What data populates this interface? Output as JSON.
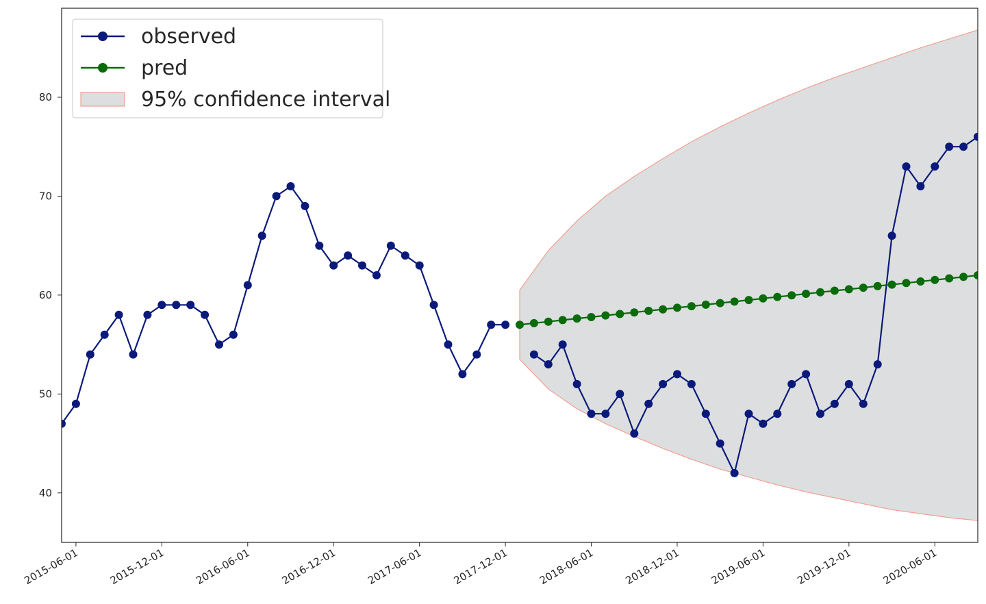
{
  "chart_data": {
    "type": "line",
    "grid": false,
    "legend_position": "top-left",
    "x_range": [
      "2015-05-01",
      "2020-09-01"
    ],
    "ylim": [
      35,
      89
    ],
    "yticks": [
      40,
      50,
      60,
      70,
      80
    ],
    "xticks": [
      "2015-06-01",
      "2015-12-01",
      "2016-06-01",
      "2016-12-01",
      "2017-06-01",
      "2017-12-01",
      "2018-06-01",
      "2018-12-01",
      "2019-06-01",
      "2019-12-01",
      "2020-06-01"
    ],
    "legend": [
      {
        "label": "observed",
        "color": "#0b1a7a",
        "kind": "line-marker"
      },
      {
        "label": "pred",
        "color": "#0a6b0a",
        "kind": "line-marker"
      },
      {
        "label": "95% confidence interval",
        "color": "#dcdee0",
        "edge": "#f0a090",
        "kind": "patch"
      }
    ],
    "series": [
      {
        "name": "observed",
        "color": "#0b1a7a",
        "segments": [
          {
            "x": [
              "2015-05-01",
              "2015-06-01",
              "2015-07-01",
              "2015-08-01",
              "2015-09-01",
              "2015-10-01",
              "2015-11-01",
              "2015-12-01",
              "2016-01-01",
              "2016-02-01",
              "2016-03-01",
              "2016-04-01",
              "2016-05-01",
              "2016-06-01",
              "2016-07-01",
              "2016-08-01",
              "2016-09-01",
              "2016-10-01",
              "2016-11-01",
              "2016-12-01",
              "2017-01-01",
              "2017-02-01",
              "2017-03-01",
              "2017-04-01",
              "2017-05-01",
              "2017-06-01",
              "2017-07-01",
              "2017-08-01",
              "2017-09-01",
              "2017-10-01",
              "2017-11-01",
              "2017-12-01"
            ],
            "y": [
              47,
              49,
              54,
              56,
              58,
              54,
              58,
              59,
              59,
              59,
              58,
              55,
              56,
              61,
              66,
              70,
              71,
              69,
              65,
              63,
              64,
              63,
              62,
              65,
              64,
              63,
              59,
              55,
              52,
              54,
              57,
              57
            ]
          },
          {
            "x": [
              "2018-02-01",
              "2018-03-01",
              "2018-04-01",
              "2018-05-01",
              "2018-06-01",
              "2018-07-01",
              "2018-08-01",
              "2018-09-01",
              "2018-10-01",
              "2018-11-01",
              "2018-12-01",
              "2019-01-01",
              "2019-02-01",
              "2019-03-01",
              "2019-04-01",
              "2019-05-01",
              "2019-06-01",
              "2019-07-01",
              "2019-08-01",
              "2019-09-01",
              "2019-10-01",
              "2019-11-01",
              "2019-12-01",
              "2020-01-01",
              "2020-02-01",
              "2020-03-01",
              "2020-04-01",
              "2020-05-01",
              "2020-06-01",
              "2020-07-01",
              "2020-08-01",
              "2020-09-01"
            ],
            "y": [
              54,
              53,
              55,
              51,
              48,
              48,
              50,
              46,
              49,
              51,
              52,
              51,
              48,
              45,
              42,
              48,
              47,
              48,
              51,
              52,
              48,
              49,
              51,
              49,
              53,
              66,
              73,
              71,
              73,
              75,
              75,
              76
            ]
          }
        ]
      },
      {
        "name": "pred",
        "color": "#0a6b0a",
        "x": [
          "2018-01-01",
          "2018-02-01",
          "2018-03-01",
          "2018-04-01",
          "2018-05-01",
          "2018-06-01",
          "2018-07-01",
          "2018-08-01",
          "2018-09-01",
          "2018-10-01",
          "2018-11-01",
          "2018-12-01",
          "2019-01-01",
          "2019-02-01",
          "2019-03-01",
          "2019-04-01",
          "2019-05-01",
          "2019-06-01",
          "2019-07-01",
          "2019-08-01",
          "2019-09-01",
          "2019-10-01",
          "2019-11-01",
          "2019-12-01",
          "2020-01-01",
          "2020-02-01",
          "2020-03-01",
          "2020-04-01",
          "2020-05-01",
          "2020-06-01",
          "2020-07-01",
          "2020-08-01",
          "2020-09-01"
        ],
        "y": [
          57.0,
          57.16,
          57.31,
          57.47,
          57.63,
          57.78,
          57.94,
          58.09,
          58.25,
          58.41,
          58.56,
          58.72,
          58.88,
          59.03,
          59.19,
          59.34,
          59.5,
          59.66,
          59.81,
          59.97,
          60.13,
          60.28,
          60.44,
          60.59,
          60.75,
          60.91,
          61.06,
          61.22,
          61.38,
          61.53,
          61.69,
          61.84,
          62.0
        ]
      }
    ],
    "confidence_interval": {
      "label": "95% confidence interval",
      "x": [
        "2018-01-01",
        "2018-03-01",
        "2018-05-01",
        "2018-07-01",
        "2018-09-01",
        "2018-11-01",
        "2019-01-01",
        "2019-03-01",
        "2019-05-01",
        "2019-07-01",
        "2019-09-01",
        "2019-11-01",
        "2020-01-01",
        "2020-03-01",
        "2020-05-01",
        "2020-07-01",
        "2020-09-01"
      ],
      "lower": [
        53.5,
        50.5,
        48.5,
        47.0,
        45.7,
        44.5,
        43.4,
        42.4,
        41.6,
        40.8,
        40.1,
        39.5,
        38.9,
        38.3,
        37.9,
        37.5,
        37.2
      ],
      "upper": [
        60.5,
        64.5,
        67.5,
        70.0,
        72.0,
        73.8,
        75.5,
        77.0,
        78.4,
        79.7,
        80.9,
        82.0,
        83.0,
        84.0,
        85.0,
        85.9,
        86.8
      ]
    }
  }
}
